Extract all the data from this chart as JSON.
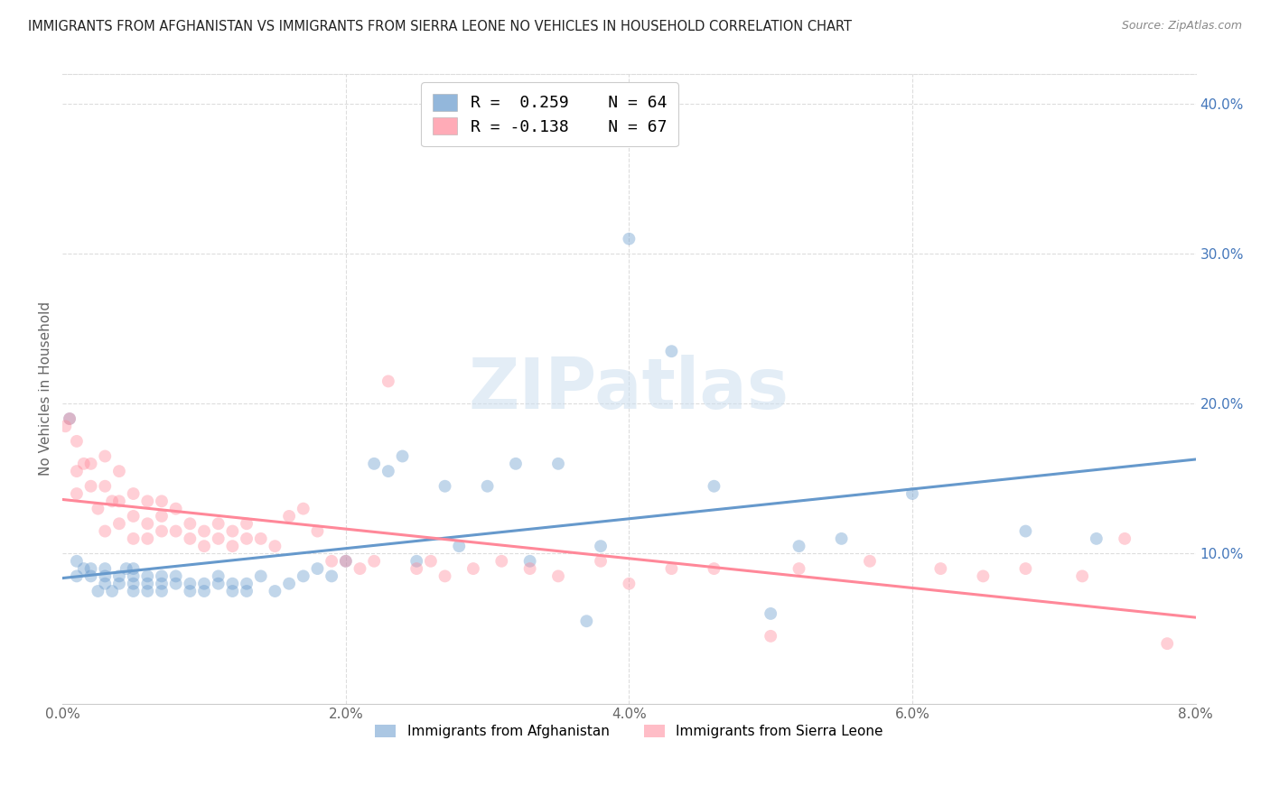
{
  "title": "IMMIGRANTS FROM AFGHANISTAN VS IMMIGRANTS FROM SIERRA LEONE NO VEHICLES IN HOUSEHOLD CORRELATION CHART",
  "source": "Source: ZipAtlas.com",
  "ylabel": "No Vehicles in Household",
  "series": [
    {
      "name": "Immigrants from Afghanistan",
      "color": "#6699cc",
      "R": 0.259,
      "N": 64,
      "x": [
        0.0005,
        0.001,
        0.001,
        0.0015,
        0.002,
        0.002,
        0.0025,
        0.003,
        0.003,
        0.003,
        0.0035,
        0.004,
        0.004,
        0.0045,
        0.005,
        0.005,
        0.005,
        0.005,
        0.006,
        0.006,
        0.006,
        0.007,
        0.007,
        0.007,
        0.008,
        0.008,
        0.009,
        0.009,
        0.01,
        0.01,
        0.011,
        0.011,
        0.012,
        0.012,
        0.013,
        0.013,
        0.014,
        0.015,
        0.016,
        0.017,
        0.018,
        0.019,
        0.02,
        0.022,
        0.023,
        0.024,
        0.025,
        0.027,
        0.028,
        0.03,
        0.032,
        0.033,
        0.035,
        0.037,
        0.038,
        0.04,
        0.043,
        0.046,
        0.05,
        0.052,
        0.055,
        0.06,
        0.068,
        0.073
      ],
      "y": [
        0.19,
        0.095,
        0.085,
        0.09,
        0.085,
        0.09,
        0.075,
        0.08,
        0.085,
        0.09,
        0.075,
        0.08,
        0.085,
        0.09,
        0.075,
        0.08,
        0.085,
        0.09,
        0.075,
        0.08,
        0.085,
        0.075,
        0.08,
        0.085,
        0.08,
        0.085,
        0.075,
        0.08,
        0.075,
        0.08,
        0.08,
        0.085,
        0.075,
        0.08,
        0.075,
        0.08,
        0.085,
        0.075,
        0.08,
        0.085,
        0.09,
        0.085,
        0.095,
        0.16,
        0.155,
        0.165,
        0.095,
        0.145,
        0.105,
        0.145,
        0.16,
        0.095,
        0.16,
        0.055,
        0.105,
        0.31,
        0.235,
        0.145,
        0.06,
        0.105,
        0.11,
        0.14,
        0.115,
        0.11
      ]
    },
    {
      "name": "Immigrants from Sierra Leone",
      "color": "#ff8899",
      "R": -0.138,
      "N": 67,
      "x": [
        0.0002,
        0.0005,
        0.001,
        0.001,
        0.001,
        0.0015,
        0.002,
        0.002,
        0.0025,
        0.003,
        0.003,
        0.003,
        0.0035,
        0.004,
        0.004,
        0.004,
        0.005,
        0.005,
        0.005,
        0.006,
        0.006,
        0.006,
        0.007,
        0.007,
        0.007,
        0.008,
        0.008,
        0.009,
        0.009,
        0.01,
        0.01,
        0.011,
        0.011,
        0.012,
        0.012,
        0.013,
        0.013,
        0.014,
        0.015,
        0.016,
        0.017,
        0.018,
        0.019,
        0.02,
        0.021,
        0.022,
        0.023,
        0.025,
        0.026,
        0.027,
        0.029,
        0.031,
        0.033,
        0.035,
        0.038,
        0.04,
        0.043,
        0.046,
        0.05,
        0.052,
        0.057,
        0.062,
        0.065,
        0.068,
        0.072,
        0.075,
        0.078
      ],
      "y": [
        0.185,
        0.19,
        0.175,
        0.155,
        0.14,
        0.16,
        0.16,
        0.145,
        0.13,
        0.165,
        0.145,
        0.115,
        0.135,
        0.155,
        0.135,
        0.12,
        0.14,
        0.125,
        0.11,
        0.135,
        0.12,
        0.11,
        0.135,
        0.115,
        0.125,
        0.13,
        0.115,
        0.12,
        0.11,
        0.115,
        0.105,
        0.11,
        0.12,
        0.115,
        0.105,
        0.12,
        0.11,
        0.11,
        0.105,
        0.125,
        0.13,
        0.115,
        0.095,
        0.095,
        0.09,
        0.095,
        0.215,
        0.09,
        0.095,
        0.085,
        0.09,
        0.095,
        0.09,
        0.085,
        0.095,
        0.08,
        0.09,
        0.09,
        0.045,
        0.09,
        0.095,
        0.09,
        0.085,
        0.09,
        0.085,
        0.11,
        0.04
      ]
    }
  ],
  "xlim": [
    0.0,
    0.08
  ],
  "ylim": [
    0.0,
    0.42
  ],
  "yticks_right": [
    0.1,
    0.2,
    0.3,
    0.4
  ],
  "ytick_labels_right": [
    "10.0%",
    "20.0%",
    "30.0%",
    "40.0%"
  ],
  "xtick_labels": [
    "0.0%",
    "2.0%",
    "4.0%",
    "6.0%",
    "8.0%"
  ],
  "xticks": [
    0.0,
    0.02,
    0.04,
    0.06,
    0.08
  ],
  "background_color": "#ffffff",
  "grid_color": "#dddddd",
  "title_color": "#222222",
  "right_axis_color": "#4477bb",
  "marker_size": 100,
  "marker_alpha": 0.4,
  "line_width": 2.2,
  "watermark_color": "#ccdff0",
  "watermark_alpha": 0.55
}
